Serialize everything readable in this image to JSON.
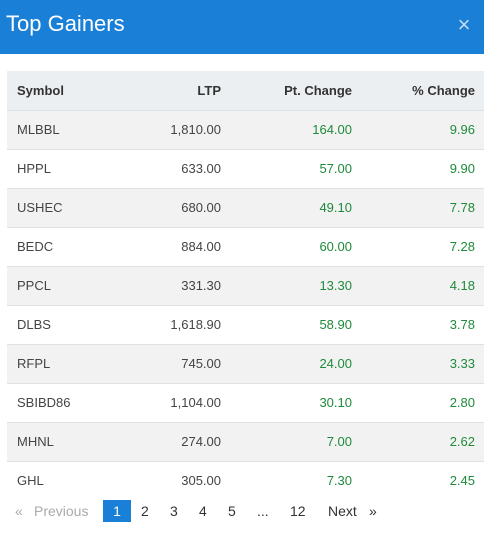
{
  "header": {
    "title": "Top Gainers",
    "close_icon": "×"
  },
  "table": {
    "columns": [
      "Symbol",
      "LTP",
      "Pt. Change",
      "% Change"
    ],
    "rows": [
      {
        "symbol": "MLBBL",
        "ltp": "1,810.00",
        "pt_change": "164.00",
        "pct_change": "9.96"
      },
      {
        "symbol": "HPPL",
        "ltp": "633.00",
        "pt_change": "57.00",
        "pct_change": "9.90"
      },
      {
        "symbol": "USHEC",
        "ltp": "680.00",
        "pt_change": "49.10",
        "pct_change": "7.78"
      },
      {
        "symbol": "BEDC",
        "ltp": "884.00",
        "pt_change": "60.00",
        "pct_change": "7.28"
      },
      {
        "symbol": "PPCL",
        "ltp": "331.30",
        "pt_change": "13.30",
        "pct_change": "4.18"
      },
      {
        "symbol": "DLBS",
        "ltp": "1,618.90",
        "pt_change": "58.90",
        "pct_change": "3.78"
      },
      {
        "symbol": "RFPL",
        "ltp": "745.00",
        "pt_change": "24.00",
        "pct_change": "3.33"
      },
      {
        "symbol": "SBIBD86",
        "ltp": "1,104.00",
        "pt_change": "30.10",
        "pct_change": "2.80"
      },
      {
        "symbol": "MHNL",
        "ltp": "274.00",
        "pt_change": "7.00",
        "pct_change": "2.62"
      },
      {
        "symbol": "GHL",
        "ltp": "305.00",
        "pt_change": "7.30",
        "pct_change": "2.45"
      }
    ],
    "change_color": "#1f8a3b"
  },
  "pagination": {
    "prev_arrow": "«",
    "previous": "Previous",
    "pages": [
      "1",
      "2",
      "3",
      "4",
      "5"
    ],
    "ellipsis": "...",
    "last": "12",
    "next": "Next",
    "next_arrow": "»",
    "active_page": 1
  },
  "colors": {
    "accent": "#1a7fd6",
    "header_row": "#eceff1",
    "stripe": "#f2f2f2"
  }
}
